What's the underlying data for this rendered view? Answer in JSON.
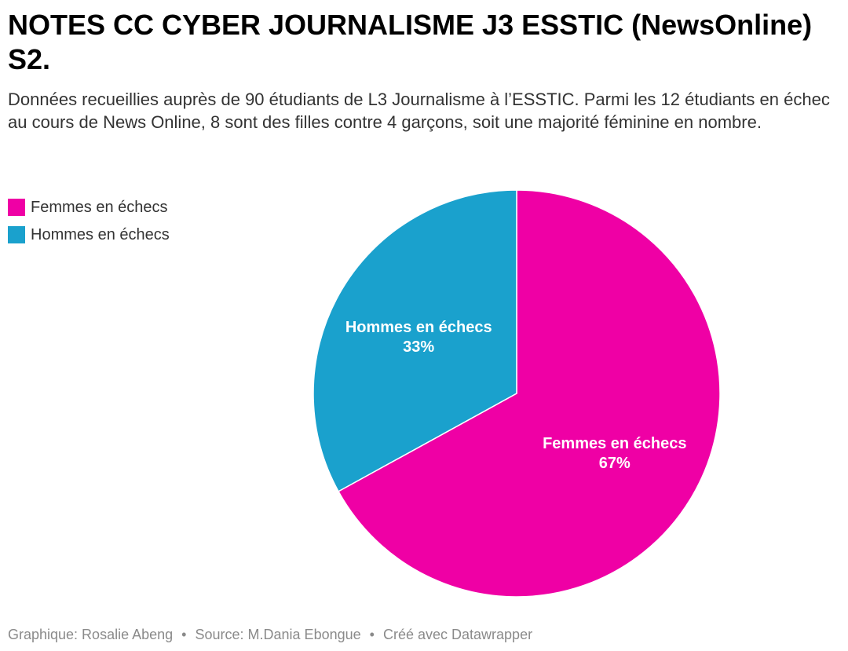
{
  "header": {
    "title": "NOTES CC CYBER JOURNALISME J3 ESSTIC (NewsOnline) S2.",
    "subtitle": "Données recueillies auprès de 90 étudiants de L3 Journalisme à l’ESSTIC. Parmi les 12 étudiants en échec au cours de News Online, 8 sont des filles contre 4 garçons, soit une majorité féminine en nombre."
  },
  "legend": {
    "items": [
      {
        "label": "Femmes en échecs",
        "color": "#ef00a5"
      },
      {
        "label": "Hommes en échecs",
        "color": "#1aa1cd"
      }
    ]
  },
  "chart_data": {
    "type": "pie",
    "title": "NOTES CC CYBER JOURNALISME J3 ESSTIC (NewsOnline) S2.",
    "legend_position": "top-left",
    "slices": [
      {
        "label": "Femmes en échecs",
        "value": 67,
        "value_label": "67%",
        "color": "#ef00a5"
      },
      {
        "label": "Hommes en échecs",
        "value": 33,
        "value_label": "33%",
        "color": "#1aa1cd"
      }
    ]
  },
  "footer": {
    "credit": "Graphique: Rosalie Abeng",
    "source": "Source: M.Dania Ebongue",
    "tool": "Créé avec Datawrapper",
    "separator": "•"
  }
}
